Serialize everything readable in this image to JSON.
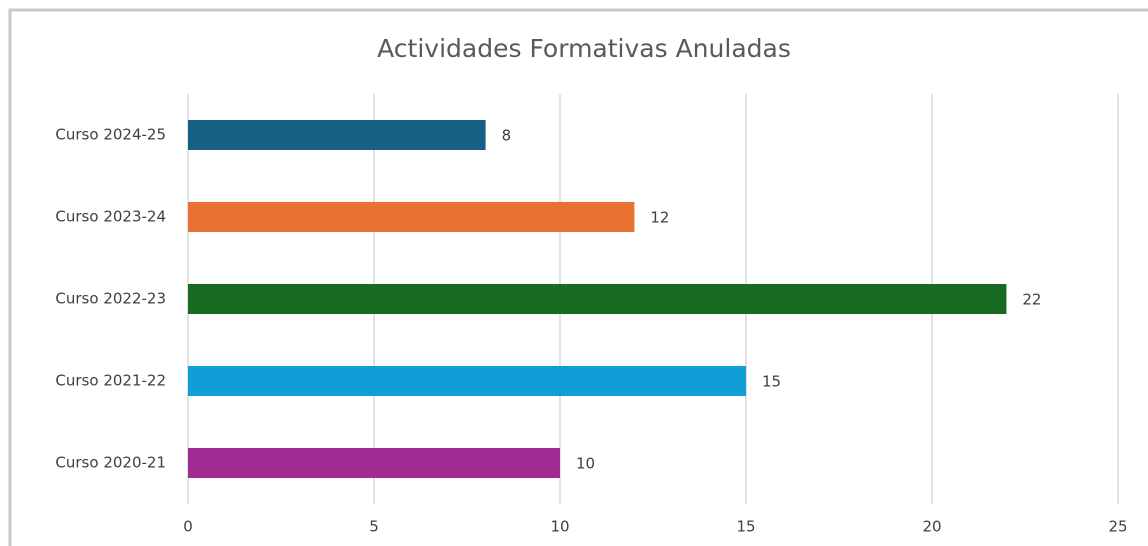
{
  "chart_data": {
    "type": "bar",
    "orientation": "horizontal",
    "title": "Actividades Formativas Anuladas",
    "categories": [
      "Curso 2024-25",
      "Curso 2023-24",
      "Curso 2022-23",
      "Curso 2021-22",
      "Curso 2020-21"
    ],
    "values": [
      8,
      12,
      22,
      15,
      10
    ],
    "colors": [
      "#166086",
      "#e97132",
      "#196b24",
      "#0f9ed5",
      "#a02b93"
    ],
    "xlim": [
      0,
      25
    ],
    "xticks": [
      0,
      5,
      10,
      15,
      20,
      25
    ],
    "grid": true,
    "data_labels": true
  }
}
